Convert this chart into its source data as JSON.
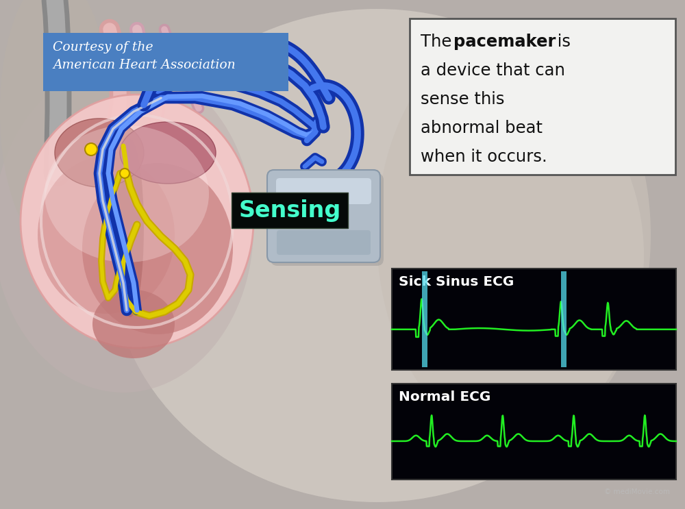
{
  "bg_color": "#b8b0a8",
  "body_bg": "#c0b8b0",
  "chest_color": "#c8bfb8",
  "heart_outer": "#f0c0c0",
  "heart_mid": "#e8a8a8",
  "heart_dark": "#c07878",
  "heart_muscle": "#b86060",
  "atria_color": "#d09090",
  "ventricle_color": "#c08080",
  "yellow_wire": "#ddcc00",
  "blue_wire_dark": "#1133aa",
  "blue_wire_light": "#4477ee",
  "pacemaker_body": "#b0bcc8",
  "pacemaker_top": "#d0dce8",
  "pacemaker_shadow": "#8898a8",
  "courtesy_bg": "#4a7fc1",
  "courtesy_text_color": "#ffffff",
  "courtesy_text": "Courtesy of the\nAmerican Heart Association",
  "textbox_bg": "#f2f2f0",
  "textbox_border": "#555555",
  "sensing_bg": "#050a08",
  "sensing_text_color": "#44ffcc",
  "sensing_label": "Sensing",
  "ecg1_title": "Sick Sinus ECG",
  "ecg2_title": "Normal ECG",
  "ecg_bg": "#020208",
  "ecg_line_color": "#22ee22",
  "ecg_title_color": "#ffffff",
  "cyan_bar_color": "#55ddee",
  "sa_node_color": "#ffdd00",
  "white_tube": "#e8e8e8",
  "pink_tube": "#e8c0c8"
}
